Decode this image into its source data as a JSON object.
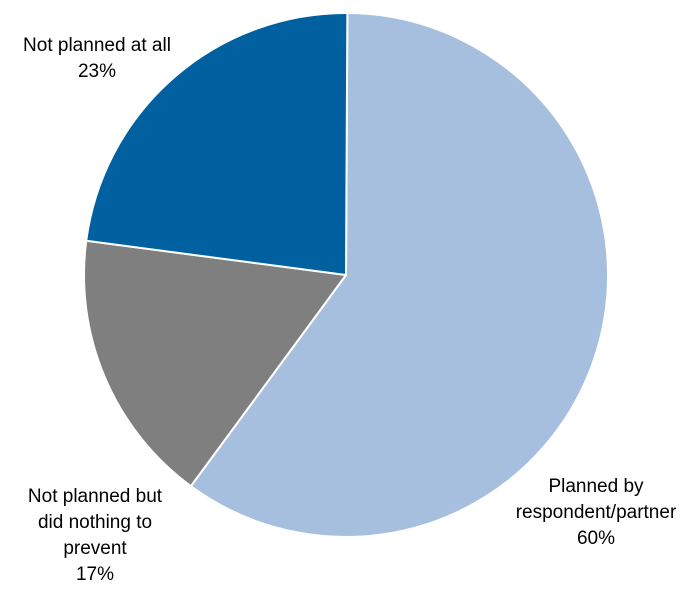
{
  "chart_data": {
    "type": "pie",
    "title": "",
    "slices": [
      {
        "label_lines": [
          "Planned by",
          "respondent/partner"
        ],
        "pct_label": "60%",
        "value": 60,
        "color": "#a6bfdf"
      },
      {
        "label_lines": [
          "Not planned but",
          "did nothing to",
          "prevent"
        ],
        "pct_label": "17%",
        "value": 17,
        "color": "#7f7f7f"
      },
      {
        "label_lines": [
          "Not planned at all"
        ],
        "pct_label": "23%",
        "value": 23,
        "color": "#0060a0"
      }
    ],
    "legend": "none",
    "start": "top, clockwise"
  }
}
